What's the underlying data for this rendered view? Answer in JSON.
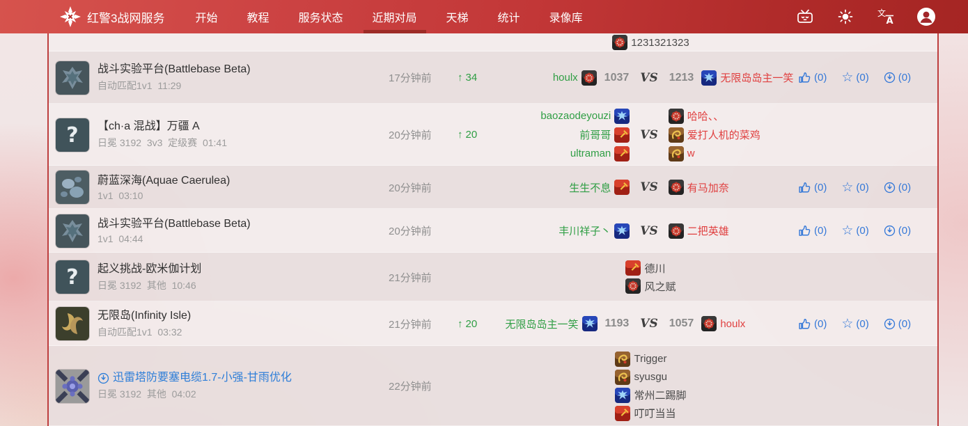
{
  "navbar": {
    "brand": "红警3战网服务",
    "items": [
      "开始",
      "教程",
      "服务状态",
      "近期对局",
      "天梯",
      "统计",
      "录像库"
    ],
    "active_index": 3,
    "right_icons": [
      "bilibili-icon",
      "theme-sun-icon",
      "language-icon",
      "profile-icon"
    ]
  },
  "vs_label": "VS",
  "rating_arrow": "↑",
  "action_labels": {
    "like": "(0)",
    "favorite": "(0)",
    "download": "(0)"
  },
  "colors": {
    "navbar_red": "#c23737",
    "active_underline": "#9d2c27",
    "panel_border": "#bd3e3e",
    "win_green": "#2f9e44",
    "loss_red": "#e04040",
    "link_blue": "#2e7ed8",
    "action_blue": "#3478d8"
  },
  "rows": [
    {
      "kind": "clipped",
      "players": [
        {
          "name": "1231321323",
          "faction": "empire"
        }
      ]
    },
    {
      "kind": "duel",
      "thumb": "battlebase",
      "map": "战斗实验平台(Battlebase Beta)",
      "details": "自动匹配1v1  11:29",
      "time": "17分钟前",
      "rating_up": "34",
      "left": {
        "name": "houlx",
        "faction": "empire",
        "score": "1037",
        "result": "win"
      },
      "right": {
        "name": "无限岛岛主一笑",
        "faction": "allies",
        "score": "1213",
        "result": "loss"
      },
      "actions": true
    },
    {
      "kind": "teams",
      "thumb": "question",
      "map": "【ch·a 混战】万疆 A",
      "details": "日冕 3192  3v3  定级赛  01:41",
      "time": "20分钟前",
      "rating_up": "20",
      "left_team": [
        {
          "name": "baozaodeyouzi",
          "faction": "allies"
        },
        {
          "name": "前哥哥",
          "faction": "soviet"
        },
        {
          "name": "ultraman",
          "faction": "soviet"
        }
      ],
      "right_team": [
        {
          "name": "哈哈、、",
          "faction": "empire"
        },
        {
          "name": "爱打人机的菜鸡",
          "faction": "celestial"
        },
        {
          "name": "w",
          "faction": "celestial"
        }
      ],
      "actions": false
    },
    {
      "kind": "duel",
      "thumb": "aquae",
      "map": "蔚蓝深海(Aquae Caerulea)",
      "details": "1v1  03:10",
      "time": "20分钟前",
      "rating_up": "",
      "left": {
        "name": "生生不息",
        "faction": "soviet",
        "score": "",
        "result": "win"
      },
      "right": {
        "name": "有马加奈",
        "faction": "empire",
        "score": "",
        "result": "loss"
      },
      "actions": true
    },
    {
      "kind": "duel",
      "thumb": "battlebase",
      "map": "战斗实验平台(Battlebase Beta)",
      "details": "1v1  04:44",
      "time": "20分钟前",
      "rating_up": "",
      "left": {
        "name": "丰川祥子丶",
        "faction": "allies",
        "score": "",
        "result": "win"
      },
      "right": {
        "name": "二把英雄",
        "faction": "empire",
        "score": "",
        "result": "loss"
      },
      "actions": true
    },
    {
      "kind": "list",
      "thumb": "question",
      "map": "起义挑战-欧米伽计划",
      "details": "日冕 3192  其他  10:46",
      "time": "21分钟前",
      "players": [
        {
          "name": "德川",
          "faction": "soviet"
        },
        {
          "name": "风之赋",
          "faction": "empire"
        }
      ],
      "actions": false
    },
    {
      "kind": "duel",
      "thumb": "infinity",
      "map": "无限岛(Infinity Isle)",
      "details": "自动匹配1v1  03:32",
      "time": "21分钟前",
      "rating_up": "20",
      "left": {
        "name": "无限岛岛主一笑",
        "faction": "allies",
        "score": "1193",
        "result": "win"
      },
      "right": {
        "name": "houlx",
        "faction": "empire",
        "score": "1057",
        "result": "loss"
      },
      "actions": true
    },
    {
      "kind": "list",
      "thumb": "thunder",
      "map_link": true,
      "map": "迅雷塔防要塞电缆1.7-小强-甘雨优化",
      "details": "日冕 3192  其他  04:02",
      "time": "22分钟前",
      "players": [
        {
          "name": "Trigger",
          "faction": "celestial"
        },
        {
          "name": "syusgu",
          "faction": "celestial"
        },
        {
          "name": "常州二踢脚",
          "faction": "allies"
        },
        {
          "name": "叮叮当当",
          "faction": "soviet"
        }
      ],
      "actions": false
    }
  ]
}
